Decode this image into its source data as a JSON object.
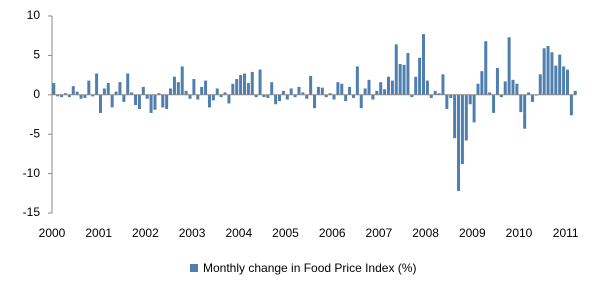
{
  "chart_data": {
    "type": "bar",
    "categories": [
      "2000",
      null,
      null,
      null,
      null,
      null,
      null,
      null,
      null,
      null,
      null,
      null,
      "2001",
      null,
      null,
      null,
      null,
      null,
      null,
      null,
      null,
      null,
      null,
      null,
      "2002",
      null,
      null,
      null,
      null,
      null,
      null,
      null,
      null,
      null,
      null,
      null,
      "2003",
      null,
      null,
      null,
      null,
      null,
      null,
      null,
      null,
      null,
      null,
      null,
      "2004",
      null,
      null,
      null,
      null,
      null,
      null,
      null,
      null,
      null,
      null,
      null,
      "2005",
      null,
      null,
      null,
      null,
      null,
      null,
      null,
      null,
      null,
      null,
      null,
      "2006",
      null,
      null,
      null,
      null,
      null,
      null,
      null,
      null,
      null,
      null,
      null,
      "2007",
      null,
      null,
      null,
      null,
      null,
      null,
      null,
      null,
      null,
      null,
      null,
      "2008",
      null,
      null,
      null,
      null,
      null,
      null,
      null,
      null,
      null,
      null,
      null,
      "2009",
      null,
      null,
      null,
      null,
      null,
      null,
      null,
      null,
      null,
      null,
      null,
      "2010",
      null,
      null,
      null,
      null,
      null,
      null,
      null,
      null,
      null,
      null,
      null,
      "2011",
      null,
      null
    ],
    "series": [
      {
        "name": "Monthly change in Food Price Index (%)",
        "color": "#4f7fae",
        "values": [
          1.5,
          -0.2,
          -0.3,
          0.2,
          -0.3,
          1.1,
          0.4,
          -0.5,
          -0.4,
          1.8,
          -0.2,
          2.7,
          -2.3,
          0.8,
          1.5,
          -1.6,
          0.4,
          1.6,
          -0.9,
          2.7,
          0.3,
          -1.3,
          -1.8,
          1.0,
          -0.5,
          -2.3,
          -1.9,
          0.2,
          -1.6,
          -1.8,
          0.8,
          2.3,
          1.6,
          3.6,
          0.5,
          -0.5,
          2.0,
          -0.6,
          1.0,
          1.8,
          -1.6,
          -0.7,
          0.8,
          -0.3,
          0.3,
          -1.1,
          1.4,
          2.0,
          2.5,
          2.7,
          1.5,
          2.9,
          -0.3,
          3.2,
          -0.3,
          -0.4,
          1.6,
          -1.2,
          -0.8,
          0.5,
          -0.6,
          0.8,
          -0.3,
          1.0,
          0.3,
          -0.5,
          2.4,
          -1.7,
          1.0,
          0.9,
          -0.3,
          0.2,
          -0.6,
          1.6,
          1.4,
          -0.8,
          1.0,
          -0.4,
          3.6,
          -1.7,
          0.8,
          1.9,
          -0.6,
          0.5,
          1.6,
          0.7,
          2.3,
          1.8,
          6.4,
          3.9,
          3.8,
          5.3,
          -0.3,
          2.3,
          4.7,
          7.7,
          1.8,
          -0.4,
          0.5,
          0.2,
          2.6,
          -1.8,
          -0.4,
          -5.5,
          -12.2,
          -8.8,
          -5.8,
          -1.2,
          -3.5,
          1.4,
          3.0,
          6.8,
          0.3,
          -2.3,
          3.4,
          -0.3,
          1.7,
          7.3,
          1.9,
          1.4,
          -2.2,
          -4.3,
          0.3,
          -0.9,
          -0.1,
          2.6,
          5.9,
          6.2,
          5.4,
          3.7,
          5.1,
          3.6,
          3.2,
          -2.6,
          0.5
        ]
      }
    ],
    "ylim": [
      -15,
      10
    ],
    "yticks": [
      -15,
      -10,
      -5,
      0,
      5,
      10
    ],
    "grid": false,
    "legend": "bottom"
  }
}
